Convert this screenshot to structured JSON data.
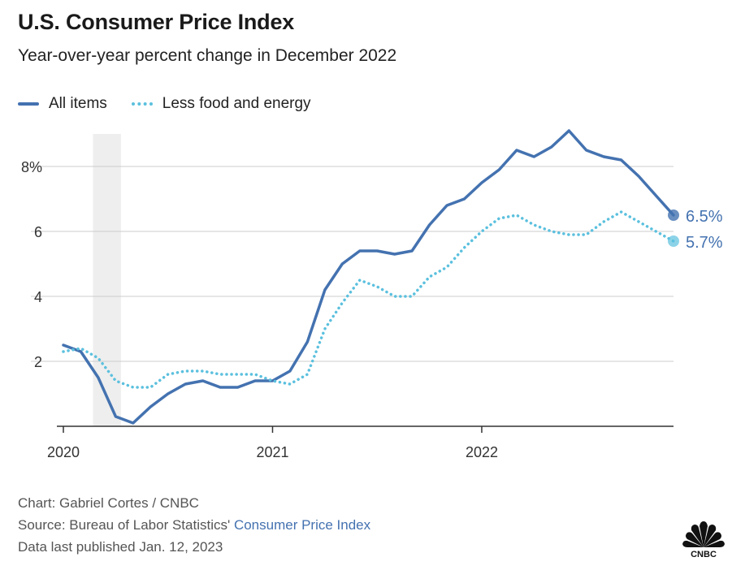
{
  "header": {
    "title": "U.S. Consumer Price Index",
    "subtitle": "Year-over-year percent change in December 2022"
  },
  "legend": {
    "all_items": "All items",
    "core": "Less food and energy"
  },
  "colors": {
    "all_items": "#4472b0",
    "core": "#5bc0de",
    "recession": "#eeeeee",
    "grid": "#cccccc",
    "axis": "#333333"
  },
  "chart_data": {
    "type": "line",
    "title": "U.S. Consumer Price Index",
    "subtitle": "Year-over-year percent change in December 2022",
    "xlabel": "",
    "ylabel": "",
    "x_ticks": [
      "2020",
      "2021",
      "2022"
    ],
    "y_ticks": [
      "2",
      "4",
      "6",
      "8%"
    ],
    "y_tick_values": [
      2,
      4,
      6,
      8
    ],
    "ylim": [
      0,
      9.5
    ],
    "x_start": "2020-01",
    "x_end": "2022-12",
    "shaded_period": {
      "start_month_index": 1.7,
      "end_month_index": 3.3
    },
    "series": [
      {
        "name": "All items",
        "style": "solid",
        "end_label": "6.5%",
        "values": [
          2.5,
          2.3,
          1.5,
          0.3,
          0.1,
          0.6,
          1.0,
          1.3,
          1.4,
          1.2,
          1.2,
          1.4,
          1.4,
          1.7,
          2.6,
          4.2,
          5.0,
          5.4,
          5.4,
          5.3,
          5.4,
          6.2,
          6.8,
          7.0,
          7.5,
          7.9,
          8.5,
          8.3,
          8.6,
          9.1,
          8.5,
          8.3,
          8.2,
          7.7,
          7.1,
          6.5
        ]
      },
      {
        "name": "Less food and energy",
        "style": "dotted",
        "end_label": "5.7%",
        "values": [
          2.3,
          2.4,
          2.1,
          1.4,
          1.2,
          1.2,
          1.6,
          1.7,
          1.7,
          1.6,
          1.6,
          1.6,
          1.4,
          1.3,
          1.6,
          3.0,
          3.8,
          4.5,
          4.3,
          4.0,
          4.0,
          4.6,
          4.9,
          5.5,
          6.0,
          6.4,
          6.5,
          6.2,
          6.0,
          5.9,
          5.9,
          6.3,
          6.6,
          6.3,
          6.0,
          5.7
        ]
      }
    ]
  },
  "footer": {
    "credit": "Chart: Gabriel Cortes / CNBC",
    "source_prefix": "Source: Bureau of Labor Statistics' ",
    "source_link": "Consumer Price Index",
    "published": "Data last published Jan. 12, 2023",
    "logo_text": "CNBC"
  }
}
